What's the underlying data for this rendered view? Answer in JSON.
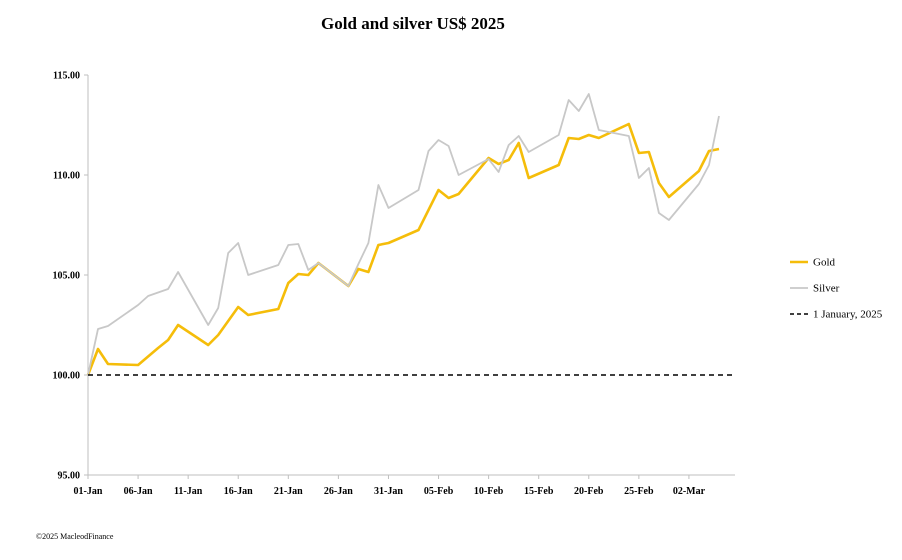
{
  "chart_data": {
    "type": "line",
    "title": "Gold and silver  US$ 2025",
    "xlabel": "",
    "ylabel": "",
    "ylim": [
      95,
      115
    ],
    "y_ticks": [
      "95.00",
      "100.00",
      "105.00",
      "110.00",
      "115.00"
    ],
    "x_ticks": [
      "01-Jan",
      "06-Jan",
      "11-Jan",
      "16-Jan",
      "21-Jan",
      "26-Jan",
      "31-Jan",
      "05-Feb",
      "10-Feb",
      "15-Feb",
      "20-Feb",
      "25-Feb",
      "02-Mar"
    ],
    "x_range_days": [
      0,
      64.6
    ],
    "grid": false,
    "legend_position": "right",
    "series": [
      {
        "name": "Gold",
        "color": "#F5BD0A",
        "points": [
          [
            0,
            100.0
          ],
          [
            1,
            101.3
          ],
          [
            2,
            100.55
          ],
          [
            5,
            100.5
          ],
          [
            7,
            101.35
          ],
          [
            8,
            101.75
          ],
          [
            9,
            102.5
          ],
          [
            12,
            101.5
          ],
          [
            13,
            102.0
          ],
          [
            15,
            103.4
          ],
          [
            16,
            103.0
          ],
          [
            19,
            103.3
          ],
          [
            20,
            104.6
          ],
          [
            21,
            105.05
          ],
          [
            22,
            105.0
          ],
          [
            23,
            105.6
          ],
          [
            26,
            104.45
          ],
          [
            27,
            105.3
          ],
          [
            28,
            105.15
          ],
          [
            29,
            106.5
          ],
          [
            30,
            106.6
          ],
          [
            33,
            107.25
          ],
          [
            35,
            109.25
          ],
          [
            36,
            108.85
          ],
          [
            37,
            109.05
          ],
          [
            40,
            110.85
          ],
          [
            41,
            110.55
          ],
          [
            42,
            110.75
          ],
          [
            43,
            111.6
          ],
          [
            44,
            109.85
          ],
          [
            47,
            110.5
          ],
          [
            48,
            111.85
          ],
          [
            49,
            111.8
          ],
          [
            50,
            112.0
          ],
          [
            51,
            111.85
          ],
          [
            54,
            112.55
          ],
          [
            55,
            111.1
          ],
          [
            56,
            111.15
          ],
          [
            57,
            109.6
          ],
          [
            58,
            108.9
          ],
          [
            61,
            110.2
          ],
          [
            62,
            111.2
          ],
          [
            63,
            111.3
          ]
        ]
      },
      {
        "name": "Silver",
        "color": "#C8C8C8",
        "points": [
          [
            0,
            100.0
          ],
          [
            1,
            102.3
          ],
          [
            2,
            102.45
          ],
          [
            5,
            103.5
          ],
          [
            6,
            103.95
          ],
          [
            8,
            104.3
          ],
          [
            9,
            105.15
          ],
          [
            12,
            102.5
          ],
          [
            13,
            103.35
          ],
          [
            14,
            106.1
          ],
          [
            15,
            106.6
          ],
          [
            16,
            105.0
          ],
          [
            19,
            105.5
          ],
          [
            20,
            106.5
          ],
          [
            21,
            106.55
          ],
          [
            22,
            105.25
          ],
          [
            23,
            105.6
          ],
          [
            26,
            104.45
          ],
          [
            27,
            105.55
          ],
          [
            28,
            106.6
          ],
          [
            29,
            109.5
          ],
          [
            30,
            108.35
          ],
          [
            33,
            109.25
          ],
          [
            34,
            111.2
          ],
          [
            35,
            111.75
          ],
          [
            36,
            111.45
          ],
          [
            37,
            110.0
          ],
          [
            40,
            110.8
          ],
          [
            41,
            110.15
          ],
          [
            42,
            111.5
          ],
          [
            43,
            111.95
          ],
          [
            44,
            111.15
          ],
          [
            47,
            112.0
          ],
          [
            48,
            113.75
          ],
          [
            49,
            113.2
          ],
          [
            50,
            114.05
          ],
          [
            51,
            112.25
          ],
          [
            54,
            111.95
          ],
          [
            55,
            109.85
          ],
          [
            56,
            110.35
          ],
          [
            57,
            108.1
          ],
          [
            58,
            107.75
          ],
          [
            61,
            109.55
          ],
          [
            62,
            110.5
          ],
          [
            63,
            112.95
          ]
        ]
      },
      {
        "name": "1 January, 2025",
        "color": "#000000",
        "style": "dashed",
        "points": [
          [
            0,
            100.0
          ],
          [
            64.6,
            100.0
          ]
        ]
      }
    ]
  },
  "footer": "©2025 MacleodFinance"
}
